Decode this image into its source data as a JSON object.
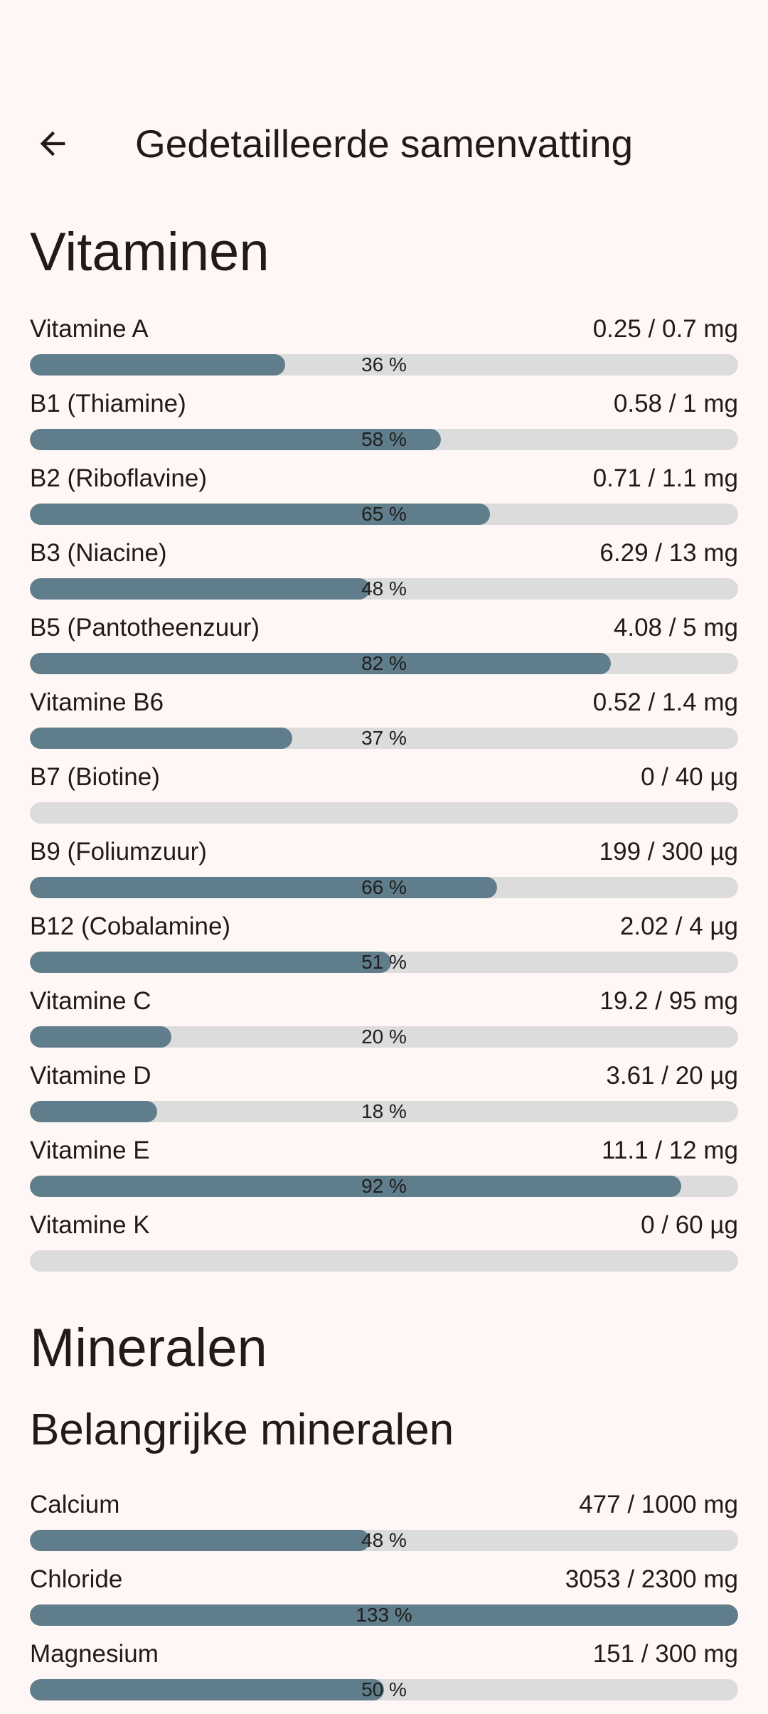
{
  "app_bar": {
    "back_icon": "arrow-back-icon",
    "title": "Gedetailleerde samenvatting"
  },
  "colors": {
    "background": "#FFF7F5",
    "bar_fill": "#607D8B",
    "bar_track": "#DCDCDC",
    "text": "#211A19"
  },
  "vitamins": {
    "title": "Vitaminen",
    "items": [
      {
        "name": "Vitamine A",
        "amount": "0.25 / 0.7 mg",
        "percent_label": "36 %",
        "fraction": 0.36
      },
      {
        "name": "B1 (Thiamine)",
        "amount": "0.58 / 1 mg",
        "percent_label": "58 %",
        "fraction": 0.58
      },
      {
        "name": "B2 (Riboflavine)",
        "amount": "0.71 / 1.1 mg",
        "percent_label": "65 %",
        "fraction": 0.65
      },
      {
        "name": "B3 (Niacine)",
        "amount": "6.29 / 13 mg",
        "percent_label": "48 %",
        "fraction": 0.48
      },
      {
        "name": "B5 (Pantotheenzuur)",
        "amount": "4.08 / 5 mg",
        "percent_label": "82 %",
        "fraction": 0.82
      },
      {
        "name": "Vitamine B6",
        "amount": "0.52 / 1.4 mg",
        "percent_label": "37 %",
        "fraction": 0.37
      },
      {
        "name": "B7 (Biotine)",
        "amount": "0 / 40 µg",
        "percent_label": "",
        "fraction": 0
      },
      {
        "name": "B9 (Foliumzuur)",
        "amount": "199 / 300 µg",
        "percent_label": "66 %",
        "fraction": 0.66
      },
      {
        "name": "B12 (Cobalamine)",
        "amount": "2.02 / 4 µg",
        "percent_label": "51 %",
        "fraction": 0.51
      },
      {
        "name": "Vitamine C",
        "amount": "19.2 / 95 mg",
        "percent_label": "20 %",
        "fraction": 0.2
      },
      {
        "name": "Vitamine D",
        "amount": "3.61 / 20 µg",
        "percent_label": "18 %",
        "fraction": 0.18
      },
      {
        "name": "Vitamine E",
        "amount": "11.1 / 12 mg",
        "percent_label": "92 %",
        "fraction": 0.92
      },
      {
        "name": "Vitamine K",
        "amount": "0 / 60 µg",
        "percent_label": "",
        "fraction": 0
      }
    ]
  },
  "minerals": {
    "title": "Mineralen",
    "subtitle": "Belangrijke mineralen",
    "items": [
      {
        "name": "Calcium",
        "amount": "477 / 1000 mg",
        "percent_label": "48 %",
        "fraction": 0.48
      },
      {
        "name": "Chloride",
        "amount": "3053 / 2300 mg",
        "percent_label": "133 %",
        "fraction": 1.33
      },
      {
        "name": "Magnesium",
        "amount": "151 / 300 mg",
        "percent_label": "50 %",
        "fraction": 0.5
      }
    ]
  }
}
